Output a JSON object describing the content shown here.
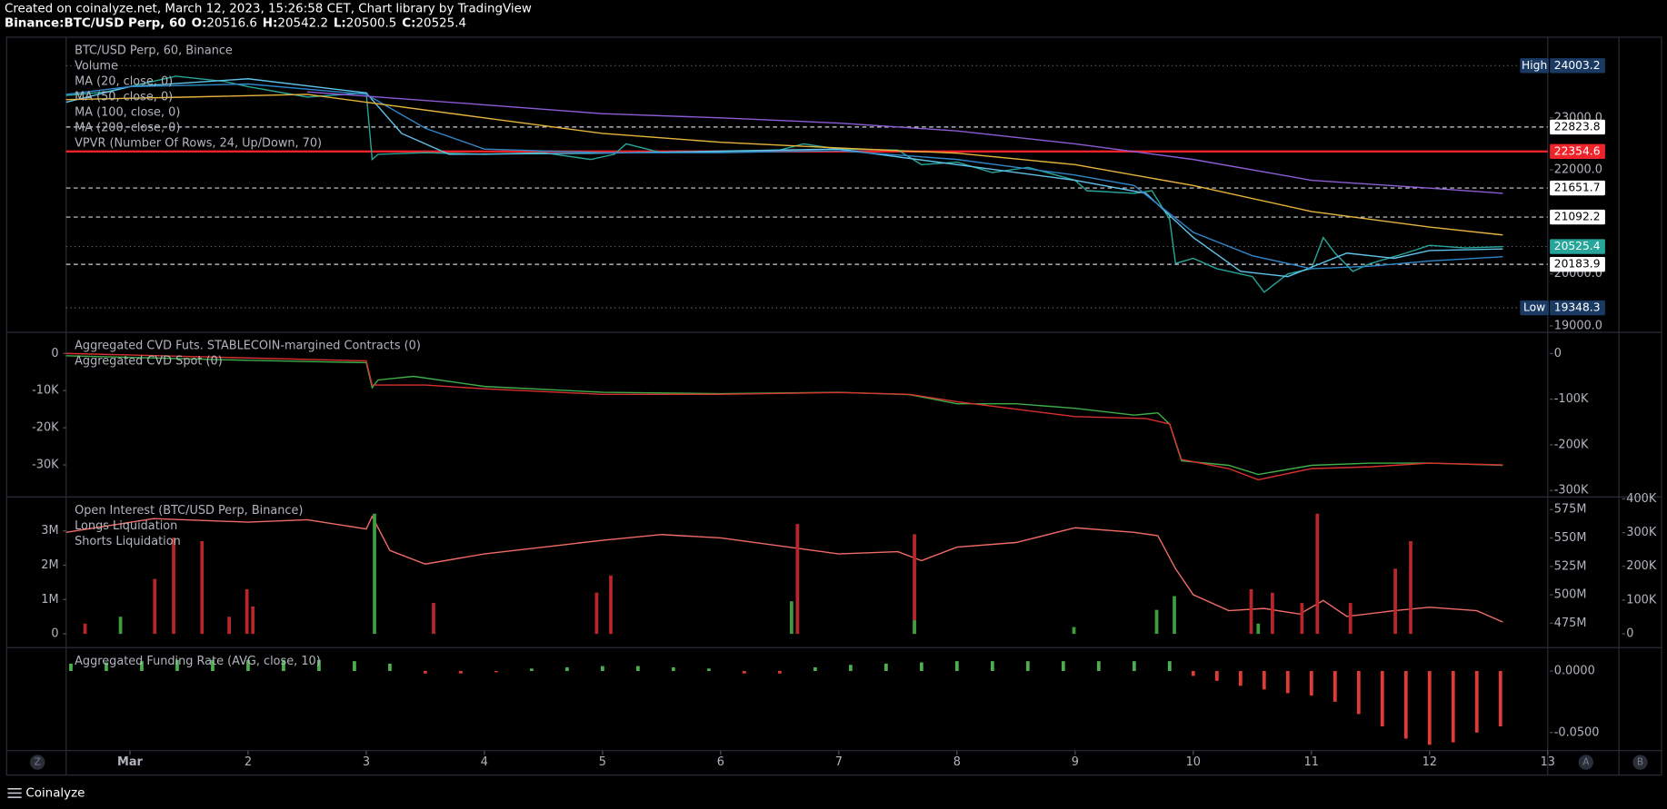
{
  "header": {
    "line1": "Created on coinalyze.net, March 12, 2023, 15:26:58 CET, Chart library by TradingView",
    "symbol": "Binance:BTC/USD Perp, 60",
    "ohlc": [
      {
        "label": "O:",
        "value": 20516.6
      },
      {
        "label": "H:",
        "value": 20542.2
      },
      {
        "label": "L:",
        "value": 20500.5
      },
      {
        "label": "C:",
        "value": 20525.4
      }
    ]
  },
  "time_axis": {
    "xlim": [
      0.46,
      13
    ],
    "xticks": [
      {
        "value": 1,
        "label": "Mar"
      },
      2,
      3,
      4,
      5,
      6,
      7,
      8,
      9,
      10,
      11,
      12,
      13
    ]
  },
  "chart_data": [
    {
      "type": "line",
      "yaxis": "right",
      "ylim": [
        18877.6,
        24551
      ],
      "yticks": [
        {
          "value": 23000,
          "label": "23000.0"
        },
        {
          "value": 22000,
          "label": "22000.0"
        },
        {
          "value": 20000,
          "label": "20000.0"
        },
        {
          "value": 19000,
          "label": "19000.0"
        }
      ],
      "indicators": [
        "Volume",
        "VPVR (Number Of Rows, 24, Up/Down, 70)"
      ],
      "series": [
        {
          "name": "BTC/USD Perp, 60, Binance",
          "color": "#26a69a",
          "x": [
            0.46,
            0.8,
            1.39,
            1.8,
            2.0,
            2.5,
            3.0,
            3.05,
            3.1,
            3.5,
            4.0,
            4.5,
            4.9,
            5.1,
            5.2,
            5.5,
            6.0,
            6.5,
            6.7,
            7.0,
            7.5,
            7.7,
            8.0,
            8.3,
            8.6,
            9.0,
            9.1,
            9.5,
            9.65,
            9.8,
            9.85,
            10.0,
            10.2,
            10.5,
            10.6,
            10.8,
            11.0,
            11.1,
            11.2,
            11.35,
            11.5,
            11.8,
            12.0,
            12.3,
            12.62
          ],
          "values": [
            23430,
            23500,
            23800,
            23700,
            23600,
            23400,
            23480,
            22200,
            22300,
            22330,
            22300,
            22330,
            22200,
            22300,
            22500,
            22330,
            22350,
            22380,
            22500,
            22400,
            22380,
            22100,
            22150,
            21950,
            22050,
            21800,
            21600,
            21550,
            21600,
            21050,
            20200,
            20300,
            20100,
            19950,
            19650,
            20000,
            20100,
            20700,
            20400,
            20050,
            20200,
            20400,
            20550,
            20500,
            20525.4
          ]
        },
        {
          "name": "MA (20, close, 0)",
          "color": "#5fc3ea",
          "x": [
            0.46,
            1,
            2,
            3,
            3.3,
            3.7,
            5,
            7,
            8,
            9,
            9.6,
            10,
            10.4,
            10.8,
            11.3,
            11.7,
            12,
            12.62
          ],
          "values": [
            23300,
            23600,
            23750,
            23480,
            22700,
            22300,
            22320,
            22400,
            22100,
            21800,
            21550,
            20700,
            20050,
            19950,
            20400,
            20300,
            20450,
            20480
          ]
        },
        {
          "name": "MA (50, close, 0)",
          "color": "#2f86c8",
          "x": [
            0.46,
            1,
            2,
            3,
            3.5,
            4,
            5,
            6,
            7,
            8,
            9,
            9.5,
            10,
            10.5,
            11,
            11.5,
            12,
            12.62
          ],
          "values": [
            23450,
            23600,
            23650,
            23450,
            22800,
            22400,
            22330,
            22330,
            22370,
            22200,
            21900,
            21700,
            20800,
            20350,
            20100,
            20150,
            20250,
            20330
          ]
        },
        {
          "name": "MA (100, close, 0)",
          "color": "#e6b43c",
          "x": [
            0.46,
            1.5,
            2.5,
            4,
            5,
            6,
            7,
            8,
            9,
            10,
            11,
            12,
            12.62
          ],
          "values": [
            23350,
            23400,
            23450,
            23000,
            22700,
            22530,
            22420,
            22320,
            22100,
            21700,
            21200,
            20900,
            20750
          ]
        },
        {
          "name": "MA (200, close, 0)",
          "color": "#8b5cd6",
          "x": [
            2.5,
            4,
            5,
            6,
            7,
            8,
            9,
            10,
            11,
            12,
            12.62
          ],
          "values": [
            23500,
            23250,
            23080,
            23000,
            22900,
            22750,
            22500,
            22200,
            21800,
            21650,
            21550
          ]
        }
      ],
      "price_labels": [
        {
          "tag": "High",
          "value": 24003.2,
          "color": "#1b3a63",
          "line": "dotted"
        },
        {
          "value": 22823.8,
          "color": "#ffffff",
          "line": "dashed"
        },
        {
          "value": 22354.6,
          "color": "#f0232a",
          "line": "solid"
        },
        {
          "value": 21651.7,
          "color": "#ffffff",
          "line": "dashed"
        },
        {
          "value": 21092.2,
          "color": "#ffffff",
          "line": "dashed"
        },
        {
          "value": 20525.4,
          "color": "#26a69a",
          "line": "dotted"
        },
        {
          "value": 20183.9,
          "color": "#ffffff",
          "line": "dashed"
        },
        {
          "tag": "Low",
          "value": 19348.3,
          "color": "#1b3a63",
          "line": "dotted"
        }
      ]
    },
    {
      "type": "line",
      "yaxis": "left",
      "ylim": [
        -38600,
        5700
      ],
      "y2lim": [
        -314000,
        46500
      ],
      "yticks": [
        0,
        {
          "value": -10000,
          "label": "-10K"
        },
        {
          "value": -20000,
          "label": "-20K"
        },
        {
          "value": -30000,
          "label": "-30K"
        }
      ],
      "y2ticks": [
        0,
        {
          "value": -100000,
          "label": "-100K"
        },
        {
          "value": -200000,
          "label": "-200K"
        },
        {
          "value": -300000,
          "label": "-300K"
        }
      ],
      "series": [
        {
          "name": "Aggregated CVD Futs. STABLECOIN-margined Contracts (0)",
          "color": "#3fae4a",
          "axis": "y2",
          "x": [
            0.46,
            2,
            3,
            3.05,
            3.1,
            3.4,
            4,
            5,
            6,
            7,
            7.6,
            8,
            8.5,
            9,
            9.5,
            9.7,
            9.8,
            9.9,
            10.3,
            10.55,
            11,
            11.5,
            12,
            12.62
          ],
          "values": [
            -5000,
            -15000,
            -20000,
            -75000,
            -58000,
            -50000,
            -72000,
            -85000,
            -88000,
            -85000,
            -90000,
            -110000,
            -110000,
            -120000,
            -135000,
            -130000,
            -155000,
            -235000,
            -245000,
            -265000,
            -245000,
            -240000,
            -240000,
            -245000
          ]
        },
        {
          "name": "Aggregated CVD Spot (0)",
          "color": "#d8312e",
          "x": [
            0.46,
            3,
            3.05,
            3.5,
            4,
            5,
            6,
            7,
            7.6,
            8,
            9,
            9.6,
            9.8,
            9.9,
            10.3,
            10.55,
            11,
            11.5,
            12,
            12.62
          ],
          "values": [
            0,
            -2000,
            -8500,
            -8500,
            -9500,
            -11000,
            -11000,
            -10500,
            -11000,
            -13000,
            -17000,
            -17500,
            -19000,
            -28500,
            -31000,
            -34000,
            -31000,
            -30500,
            -29500,
            -30000
          ]
        }
      ]
    },
    {
      "type": "bar",
      "yaxis": "left",
      "ylim": [
        -400000,
        3990000
      ],
      "y2lim": [
        453500000,
        586200000
      ],
      "y3lim": [
        -41000,
        406000
      ],
      "yticks": [
        {
          "value": 3000000,
          "label": "3M"
        },
        {
          "value": 2000000,
          "label": "2M"
        },
        {
          "value": 1000000,
          "label": "1M"
        },
        0
      ],
      "y2ticks": [
        {
          "value": 575000000,
          "label": "575M"
        },
        {
          "value": 550000000,
          "label": "550M"
        },
        {
          "value": 525000000,
          "label": "525M"
        },
        {
          "value": 500000000,
          "label": "500M"
        },
        {
          "value": 475000000,
          "label": "475M"
        }
      ],
      "y3ticks": [
        {
          "value": 400000,
          "label": "400K"
        },
        {
          "value": 300000,
          "label": "300K"
        },
        {
          "value": 200000,
          "label": "200K"
        },
        {
          "value": 100000,
          "label": "100K"
        },
        0
      ],
      "series": [
        {
          "name": "Open Interest (BTC/USD Perp, Binance)",
          "type": "line",
          "axis": "y2",
          "color": "#f06a68",
          "x": [
            0.46,
            1.2,
            2,
            2.5,
            3,
            3.05,
            3.2,
            3.5,
            4,
            5,
            5.5,
            6,
            7,
            7.5,
            7.7,
            8,
            8.5,
            9,
            9.5,
            9.7,
            9.85,
            10,
            10.3,
            10.6,
            10.9,
            11.1,
            11.3,
            11.7,
            12,
            12.4,
            12.62
          ],
          "values": [
            555000000,
            567000000,
            564000000,
            566000000,
            558000000,
            569000000,
            539000000,
            527000000,
            536000000,
            548000000,
            553000000,
            550000000,
            536000000,
            538000000,
            530000000,
            542000000,
            546000000,
            559000000,
            555000000,
            552000000,
            523000000,
            500000000,
            486000000,
            488000000,
            483000000,
            495000000,
            481000000,
            486000000,
            489000000,
            486000000,
            476000000
          ]
        },
        {
          "name": "Longs Liquidation",
          "color": "#b8262b",
          "x": [
            0.62,
            1.21,
            1.37,
            1.61,
            1.84,
            1.99,
            2.04,
            3.57,
            4.95,
            5.07,
            6.65,
            7.64,
            10.49,
            10.67,
            10.92,
            11.05,
            11.33,
            11.71,
            11.84
          ],
          "values": [
            300000,
            1600000,
            2800000,
            2700000,
            500000,
            1300000,
            800000,
            900000,
            1200000,
            1700000,
            3200000,
            2900000,
            1300000,
            1200000,
            900000,
            3500000,
            900000,
            1900000,
            2700000
          ]
        },
        {
          "name": "Shorts Liquidation",
          "color": "#3f9d3f",
          "x": [
            0.92,
            3.07,
            6.6,
            7.64,
            8.99,
            9.69,
            9.84,
            10.55
          ],
          "values": [
            500000,
            3500000,
            950000,
            400000,
            200000,
            700000,
            1100000,
            300000
          ]
        }
      ]
    },
    {
      "type": "bar",
      "yaxis": "right",
      "ylim": [
        -0.0647,
        0.019
      ],
      "yticks": [
        {
          "value": 0,
          "label": "0.0000"
        },
        {
          "value": -0.05,
          "label": "-0.0500"
        }
      ],
      "series": [
        {
          "name": "Aggregated Funding Rate (AVG, close, 10)",
          "color_positive": "#4caf50",
          "color_negative": "#e53935",
          "x": [
            0.5,
            0.8,
            1.1,
            1.4,
            1.7,
            2.0,
            2.3,
            2.6,
            2.9,
            3.2,
            3.5,
            3.8,
            4.1,
            4.4,
            4.7,
            5.0,
            5.3,
            5.6,
            5.9,
            6.2,
            6.5,
            6.8,
            7.1,
            7.4,
            7.7,
            8.0,
            8.3,
            8.6,
            8.9,
            9.2,
            9.5,
            9.8,
            10.0,
            10.2,
            10.4,
            10.6,
            10.8,
            11.0,
            11.2,
            11.4,
            11.6,
            11.8,
            12.0,
            12.2,
            12.4,
            12.6
          ],
          "values": [
            0.006,
            0.007,
            0.008,
            0.009,
            0.009,
            0.009,
            0.009,
            0.009,
            0.008,
            0.006,
            -0.002,
            -0.002,
            -0.001,
            0.002,
            0.003,
            0.004,
            0.004,
            0.003,
            0.002,
            -0.002,
            -0.002,
            0.003,
            0.005,
            0.006,
            0.007,
            0.008,
            0.008,
            0.008,
            0.008,
            0.008,
            0.008,
            0.008,
            -0.004,
            -0.008,
            -0.012,
            -0.015,
            -0.018,
            -0.02,
            -0.025,
            -0.035,
            -0.045,
            -0.055,
            -0.06,
            -0.058,
            -0.05,
            -0.045
          ]
        }
      ]
    }
  ],
  "ui": {
    "buttons": [
      "Z",
      "A",
      "B"
    ],
    "brand": "Coinalyze"
  }
}
